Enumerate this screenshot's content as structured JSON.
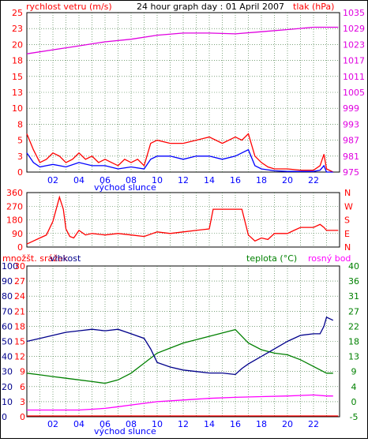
{
  "chart_data": [
    {
      "type": "line",
      "title": "24 hour graph day : 01 April 2007",
      "left_axis_label": "rychlost vetru (m/s)",
      "right_axis_label": "tlak (hPa)",
      "y_left_ticks": [
        "25",
        "23",
        "20",
        "18",
        "15",
        "13",
        "10",
        "8",
        "5",
        "3",
        "0"
      ],
      "y_right_ticks": [
        "1035",
        "1029",
        "1023",
        "1017",
        "1011",
        "1005",
        "999",
        "993",
        "987",
        "981",
        "975"
      ],
      "ylim_left": [
        0,
        25
      ],
      "ylim_right": [
        975,
        1035
      ],
      "x_ticks": [
        "02",
        "04",
        "06",
        "08",
        "10",
        "12",
        "14",
        "16",
        "18",
        "20",
        "22"
      ],
      "x_sublabel": "východ slunce",
      "series": [
        {
          "name": "tlak (hPa)",
          "axis": "right",
          "color": "#e000e0",
          "x": [
            0,
            2,
            4,
            6,
            8,
            10,
            12,
            14,
            16,
            18,
            20,
            22,
            23.9
          ],
          "values": [
            1019.5,
            1021,
            1022.5,
            1024,
            1025,
            1026.5,
            1027.3,
            1027.3,
            1027,
            1027.8,
            1028.6,
            1029.5,
            1029.5
          ]
        },
        {
          "name": "",
          "axis": "left",
          "color": "#ff0000",
          "x": [
            0,
            0.5,
            1,
            1.5,
            2,
            2.5,
            3,
            3.5,
            4,
            4.5,
            5,
            5.5,
            6,
            6.5,
            7,
            7.5,
            8,
            8.5,
            9,
            9.5,
            10,
            11,
            12,
            13,
            14,
            15,
            16,
            16.5,
            17,
            17.5,
            18,
            18.5,
            19,
            20,
            21,
            22,
            22.5,
            22.8,
            23,
            23.5
          ],
          "values": [
            6,
            3.5,
            1.5,
            2,
            3,
            2.5,
            1.5,
            2,
            3,
            2,
            2.5,
            1.5,
            2,
            1.5,
            1,
            2,
            1.5,
            2,
            1,
            4.5,
            5,
            4.5,
            4.5,
            5,
            5.5,
            4.5,
            5.5,
            5,
            6,
            2.5,
            1.5,
            0.8,
            0.5,
            0.5,
            0.3,
            0.3,
            1,
            2.8,
            0.5,
            0
          ]
        },
        {
          "name": "",
          "axis": "left",
          "color": "#0000ff",
          "x": [
            0,
            0.5,
            1,
            1.5,
            2,
            2.5,
            3,
            4,
            5,
            6,
            7,
            8,
            9,
            9.5,
            10,
            11,
            12,
            13,
            14,
            15,
            16,
            17,
            17.5,
            18,
            19,
            20,
            22,
            22.5,
            22.8,
            23,
            23.5
          ],
          "values": [
            3,
            1.5,
            0.8,
            1,
            1.2,
            1,
            0.8,
            1.5,
            1,
            1,
            0.5,
            0.8,
            0.5,
            2,
            2.5,
            2.5,
            2,
            2.5,
            2.5,
            2,
            2.5,
            3.5,
            1,
            0.5,
            0.2,
            0.1,
            0.1,
            0.3,
            1,
            0,
            0
          ]
        }
      ]
    },
    {
      "type": "line",
      "y_left_ticks": [
        "360",
        "270",
        "180",
        "90",
        "0"
      ],
      "y_right_ticks": [
        "N",
        "W",
        "S",
        "E",
        "N"
      ],
      "ylim": [
        0,
        360
      ],
      "series": [
        {
          "name": "",
          "color": "#ff0000",
          "x": [
            0,
            0.5,
            1,
            1.5,
            2,
            2.5,
            2.8,
            3,
            3.3,
            3.6,
            4,
            4.5,
            5,
            6,
            7,
            8,
            9,
            10,
            11,
            12,
            13,
            14,
            14.3,
            14.5,
            15,
            16,
            16.5,
            17,
            17.5,
            18,
            18.5,
            19,
            20,
            20.5,
            21,
            22,
            22.5,
            22.8,
            23,
            23.9
          ],
          "values": [
            20,
            40,
            60,
            80,
            170,
            330,
            250,
            120,
            70,
            60,
            110,
            80,
            90,
            80,
            90,
            80,
            70,
            100,
            90,
            100,
            110,
            120,
            250,
            250,
            250,
            250,
            250,
            80,
            40,
            60,
            50,
            90,
            90,
            110,
            130,
            130,
            150,
            130,
            110,
            110
          ]
        }
      ]
    },
    {
      "type": "line",
      "left_axis_label_1": "množšt. srážek",
      "left_axis_label_2": "vlhkost",
      "right_axis_label_1": "teplota (°C)",
      "right_axis_label_2": "rosný bod",
      "y_left_ticks_1": [
        "30",
        "27",
        "24",
        "21",
        "18",
        "15",
        "12",
        "9",
        "6",
        "3",
        "0"
      ],
      "y_left_ticks_2": [
        "100",
        "90",
        "80",
        "70",
        "60",
        "50",
        "40",
        "30",
        "20",
        "10",
        "0"
      ],
      "y_right_ticks": [
        "40",
        "36",
        "31",
        "27",
        "22",
        "18",
        "13",
        "9",
        "4",
        "0",
        "-5"
      ],
      "ylim_humidity": [
        0,
        100
      ],
      "ylim_temperature": [
        -5,
        40
      ],
      "x_ticks": [
        "02",
        "04",
        "06",
        "08",
        "10",
        "12",
        "14",
        "16",
        "18",
        "20",
        "22"
      ],
      "x_sublabel": "východ slunce",
      "series": [
        {
          "name": "vlhkost",
          "axis": "humidity",
          "color": "#00008b",
          "x": [
            0,
            1,
            2,
            3,
            4,
            5,
            6,
            7,
            8,
            9,
            9.5,
            10,
            11,
            12,
            13,
            14,
            15,
            16,
            16.5,
            17,
            18,
            19,
            20,
            21,
            22,
            22.5,
            22.8,
            23,
            23.5
          ],
          "values": [
            50,
            52,
            54,
            56,
            57,
            58,
            57,
            58,
            55,
            52,
            45,
            36,
            33,
            31,
            30,
            29,
            29,
            28,
            32,
            35,
            40,
            45,
            50,
            54,
            55,
            55,
            60,
            66,
            64
          ]
        },
        {
          "name": "teplota (°C)",
          "axis": "temperature",
          "color": "#008000",
          "x": [
            0,
            1,
            2,
            3,
            4,
            5,
            6,
            7,
            8,
            9,
            10,
            11,
            12,
            13,
            14,
            15,
            16,
            17,
            18,
            19,
            20,
            21,
            22,
            23,
            23.5
          ],
          "values": [
            8,
            7.5,
            7,
            6.5,
            6,
            5.5,
            5,
            6,
            8,
            11,
            14,
            15.5,
            17,
            18,
            19,
            20,
            21,
            17,
            15,
            14,
            13.5,
            12,
            10,
            8,
            8
          ]
        },
        {
          "name": "rosný bod",
          "axis": "temperature",
          "color": "#ff00ff",
          "x": [
            0,
            2,
            4,
            6,
            7,
            8,
            10,
            12,
            14,
            16,
            18,
            20,
            22,
            23,
            23.5
          ],
          "values": [
            -3,
            -3,
            -3,
            -2.5,
            -2,
            -1.5,
            -0.5,
            0,
            0.5,
            0.8,
            1,
            1.2,
            1.5,
            1.2,
            1.2
          ]
        },
        {
          "name": "množšt. srážek",
          "axis": "rain",
          "color": "#ff0000",
          "x": [
            0,
            23.9
          ],
          "values": [
            0,
            0
          ]
        }
      ]
    }
  ]
}
